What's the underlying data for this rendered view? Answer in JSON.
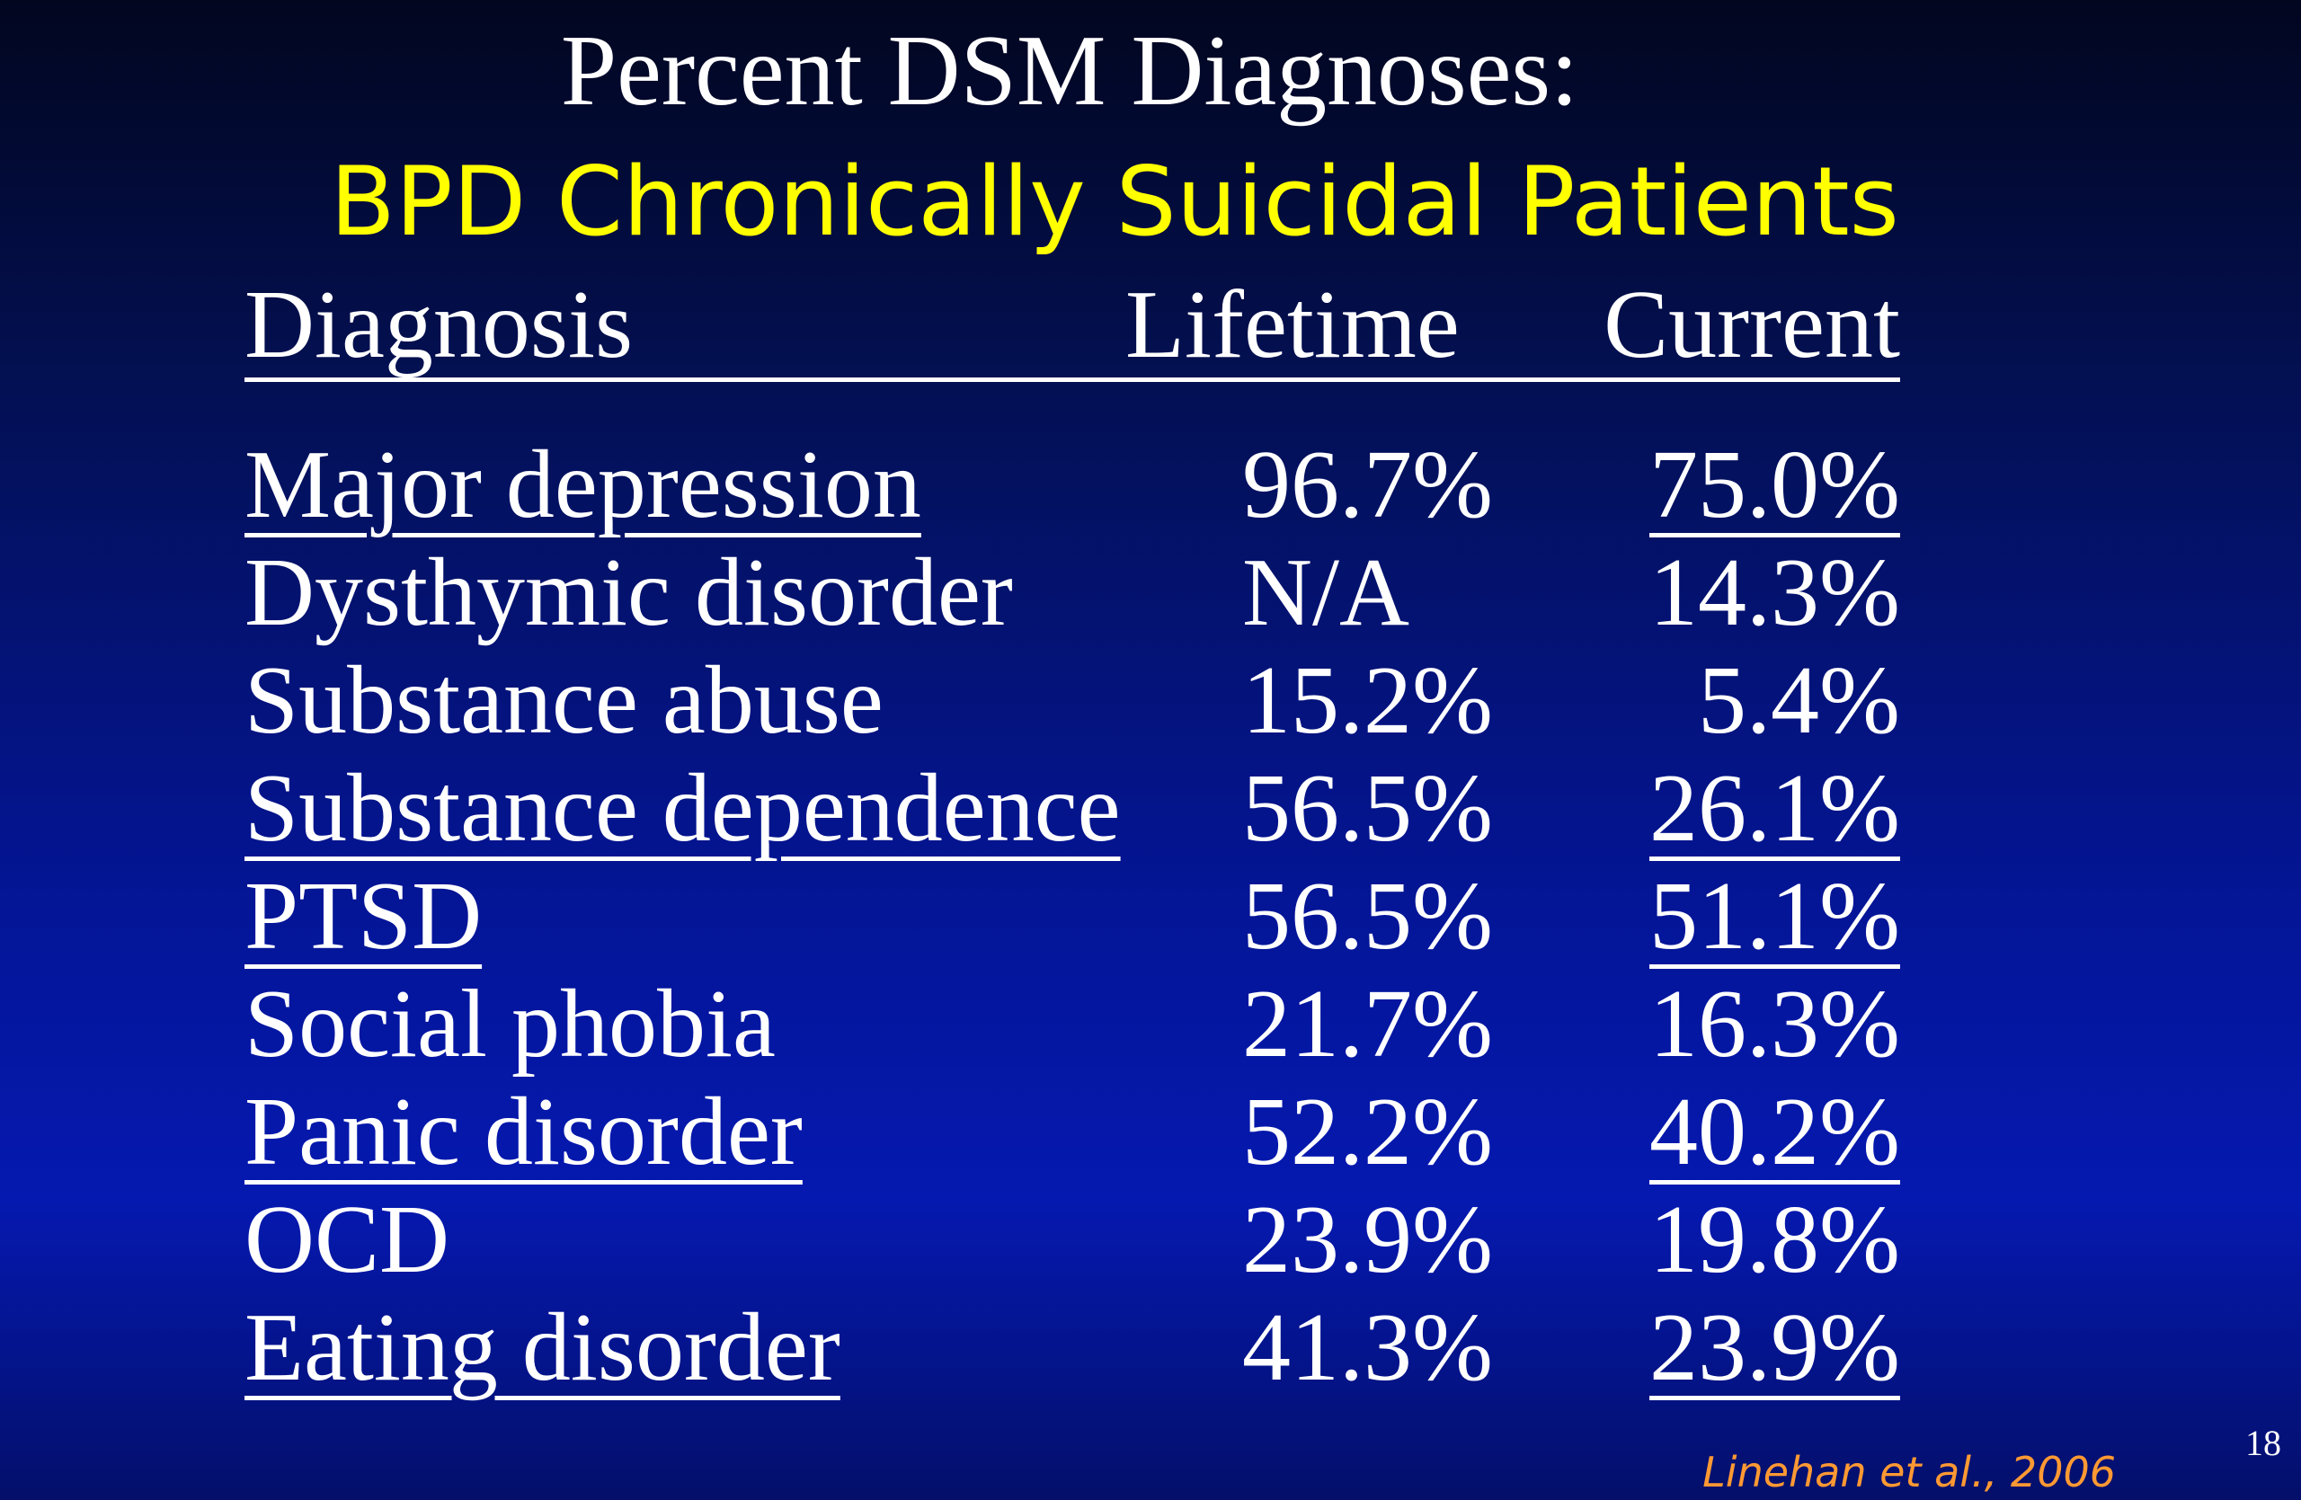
{
  "title": "Percent DSM  Diagnoses:",
  "subtitle": "BPD Chronically Suicidal Patients",
  "table": {
    "headers": {
      "diagnosis": "Diagnosis",
      "lifetime": "Lifetime",
      "current": "Current"
    },
    "rows": [
      {
        "diagnosis": "Major depression",
        "lifetime": "96.7%",
        "current": "75.0%"
      },
      {
        "diagnosis": "Dysthymic disorder",
        "lifetime": "N/A",
        "current": "14.3%"
      },
      {
        "diagnosis": "Substance abuse",
        "lifetime": "15.2%",
        "current": "5.4%"
      },
      {
        "diagnosis": "Substance dependence",
        "lifetime": "56.5%",
        "current": "26.1%"
      },
      {
        "diagnosis": "PTSD",
        "lifetime": "56.5%",
        "current": "51.1%"
      },
      {
        "diagnosis": "Social phobia",
        "lifetime": "21.7%",
        "current": "16.3%"
      },
      {
        "diagnosis": "Panic disorder",
        "lifetime": "52.2%",
        "current": "40.2%"
      },
      {
        "diagnosis": "OCD",
        "lifetime": "23.9%",
        "current": "19.8%"
      },
      {
        "diagnosis": "Eating disorder",
        "lifetime": "41.3%",
        "current": "23.9%"
      }
    ]
  },
  "citation": "Linehan et al., 2006",
  "page_number": "18",
  "colors": {
    "title": "#ffffff",
    "subtitle": "#ffff00",
    "citation": "#ff9933",
    "background": "#0519b0"
  }
}
